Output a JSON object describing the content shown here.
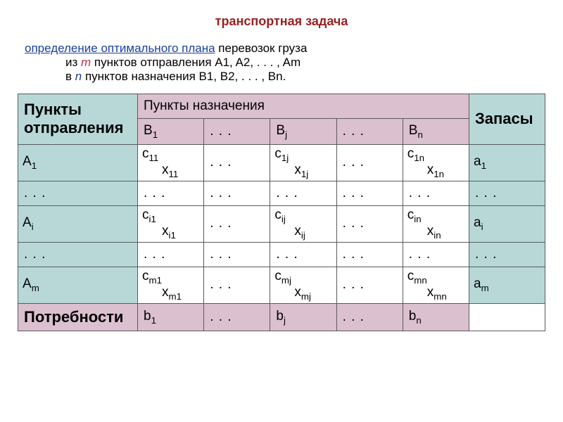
{
  "colors": {
    "title": "#9a1f1f",
    "link": "#1a3fa0",
    "em_m": "#c2304a",
    "em_n": "#1a3fa0",
    "cell_teal": "#b8d8d8",
    "cell_pink": "#dbc0cf",
    "cell_white": "#ffffff",
    "text": "#222222",
    "border": "#5a5a5a"
  },
  "title": "транспортная задача",
  "desc": {
    "link_text": "определение оптимального плана",
    "after_link": " перевозок груза",
    "line2_before": "из ",
    "line2_m": "m",
    "line2_after": " пунктов отправления A1, A2, . . . , Am",
    "line3_before": "в ",
    "line3_n": "n",
    "line3_after": " пунктов назначения B1, B2, . . . , Bn."
  },
  "headers": {
    "origin": "Пункты отправления",
    "dest": "Пункты назначения",
    "supply": "Запасы",
    "demand": "Потребности"
  },
  "dest_cols": {
    "b1": {
      "main": "B",
      "sub": "1"
    },
    "bj": {
      "main": "B",
      "sub": "j"
    },
    "bn": {
      "main": "B",
      "sub": "n"
    }
  },
  "origin_rows": {
    "a1": {
      "main": "A",
      "sub": "1"
    },
    "ai": {
      "main": "A",
      "sub": "i"
    },
    "am": {
      "main": "A",
      "sub": "m"
    }
  },
  "supply": {
    "a1": {
      "main": "a",
      "sub": "1"
    },
    "ai": {
      "main": "a",
      "sub": "i"
    },
    "am": {
      "main": "a",
      "sub": "m"
    }
  },
  "demand": {
    "b1": {
      "main": "b",
      "sub": "1"
    },
    "bj": {
      "main": "b",
      "sub": "j"
    },
    "bn": {
      "main": "b",
      "sub": "n"
    }
  },
  "cells": {
    "r1": {
      "c1": {
        "c": "c",
        "csub": "11",
        "x": "x",
        "xsub": "11"
      },
      "cj": {
        "c": "c",
        "csub": "1j",
        "x": "x",
        "xsub": "1j"
      },
      "cn": {
        "c": "c",
        "csub": "1n",
        "x": "x",
        "xsub": "1n"
      }
    },
    "ri": {
      "c1": {
        "c": "c",
        "csub": "i1",
        "x": "x",
        "xsub": "i1"
      },
      "cj": {
        "c": "c",
        "csub": "ij",
        "x": "x",
        "xsub": "ij"
      },
      "cn": {
        "c": "c",
        "csub": "in",
        "x": "x",
        "xsub": "in"
      }
    },
    "rm": {
      "c1": {
        "c": "c",
        "csub": "m1",
        "x": "x",
        "xsub": "m1"
      },
      "cj": {
        "c": "c",
        "csub": "mj",
        "x": "x",
        "xsub": "mj"
      },
      "cn": {
        "c": "c",
        "csub": "mn",
        "x": "x",
        "xsub": "mn"
      }
    }
  },
  "ellipsis": ". . ."
}
